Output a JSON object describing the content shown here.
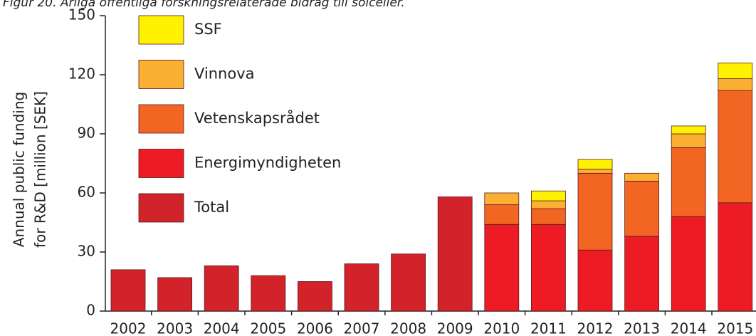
{
  "chart_data": {
    "type": "stacked_bar",
    "title": "Figur 20. Årliga offentliga forskningsrelaterade bidrag till solceller.",
    "y_label": [
      "Annual public funding",
      "for R&D [million [SEK]"
    ],
    "categories": [
      "2002",
      "2003",
      "2004",
      "2005",
      "2006",
      "2007",
      "2008",
      "2009",
      "2010",
      "2011",
      "2012",
      "2013",
      "2014",
      "2015"
    ],
    "series": [
      {
        "name": "Total",
        "color": "#d2232a",
        "values": [
          21,
          17,
          23,
          18,
          15,
          24,
          29,
          58,
          null,
          null,
          null,
          null,
          null,
          null
        ]
      },
      {
        "name": "Energimyndigheten",
        "color": "#ed1c24",
        "values": [
          null,
          null,
          null,
          null,
          null,
          null,
          null,
          null,
          44,
          44,
          31,
          38,
          48,
          55
        ]
      },
      {
        "name": "Vetenskapsrådet",
        "color": "#f26522",
        "values": [
          null,
          null,
          null,
          null,
          null,
          null,
          null,
          null,
          10,
          8,
          39,
          28,
          35,
          57
        ]
      },
      {
        "name": "Vinnova",
        "color": "#fbb034",
        "values": [
          null,
          null,
          null,
          null,
          null,
          null,
          null,
          null,
          6,
          4,
          2,
          4,
          7,
          6
        ]
      },
      {
        "name": "SSF",
        "color": "#fff200",
        "values": [
          null,
          null,
          null,
          null,
          null,
          null,
          null,
          null,
          null,
          5,
          5,
          null,
          4,
          8
        ]
      }
    ],
    "ylim": [
      0,
      150
    ],
    "yticks": [
      0,
      30,
      60,
      90,
      120,
      150
    ]
  }
}
